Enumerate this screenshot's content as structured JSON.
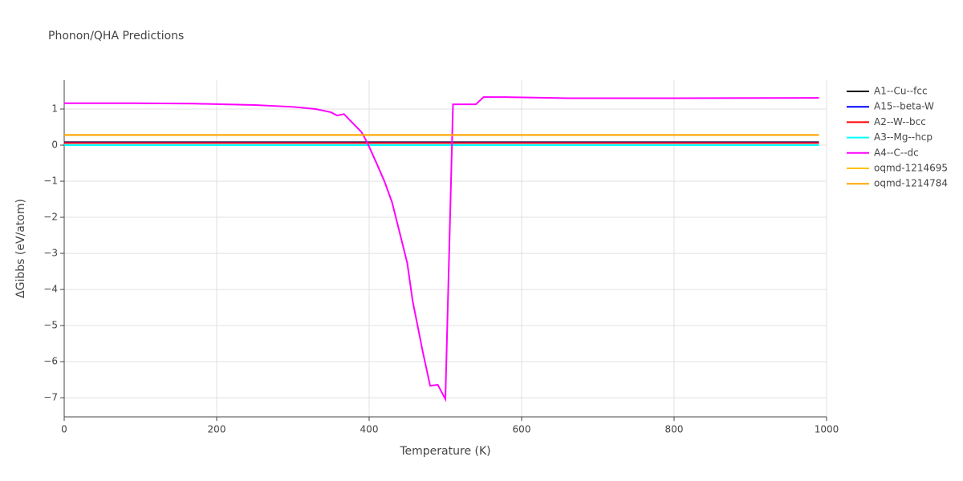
{
  "chart_data": {
    "type": "line",
    "title": "Phonon/QHA Predictions",
    "xlabel": "Temperature (K)",
    "ylabel": "ΔGibbs (eV/atom)",
    "xlim": [
      0,
      1000
    ],
    "xticks": [
      0,
      200,
      400,
      600,
      800,
      1000
    ],
    "ylim": [
      -7.53,
      1.8
    ],
    "yticks": [
      {
        "value": -7,
        "label": "−7"
      },
      {
        "value": -6,
        "label": "−6"
      },
      {
        "value": -5,
        "label": "−5"
      },
      {
        "value": -4,
        "label": "−4"
      },
      {
        "value": -3,
        "label": "−3"
      },
      {
        "value": -2,
        "label": "−2"
      },
      {
        "value": -1,
        "label": "−1"
      },
      0,
      1
    ],
    "grid": true,
    "series": [
      {
        "name": "A1--Cu--fcc",
        "color": "#000000",
        "x": [
          0,
          990
        ],
        "values": [
          0.08,
          0.08
        ]
      },
      {
        "name": "A15--beta-W",
        "color": "#0000ff",
        "x": [
          0,
          990
        ],
        "values": [
          0.07,
          0.07
        ]
      },
      {
        "name": "A2--W--bcc",
        "color": "#ff0000",
        "x": [
          0,
          990
        ],
        "values": [
          0.06,
          0.06
        ]
      },
      {
        "name": "A3--Mg--hcp",
        "color": "#00ffff",
        "x": [
          0,
          990
        ],
        "values": [
          0,
          0
        ]
      },
      {
        "name": "A4--C--dc",
        "color": "#ff00ff",
        "x": [
          0,
          90,
          170,
          250,
          300,
          330,
          350,
          358,
          367,
          390,
          398,
          408,
          420,
          430,
          440,
          450,
          457,
          470,
          480,
          490,
          500,
          510,
          540,
          550,
          580,
          610,
          660,
          800,
          990
        ],
        "values": [
          1.16,
          1.16,
          1.15,
          1.11,
          1.06,
          1.0,
          0.91,
          0.82,
          0.86,
          0.36,
          0.05,
          -0.42,
          -1.0,
          -1.58,
          -2.42,
          -3.27,
          -4.31,
          -5.69,
          -6.67,
          -6.64,
          -7.04,
          1.13,
          1.13,
          1.33,
          1.33,
          1.32,
          1.3,
          1.3,
          1.31
        ]
      },
      {
        "name": "oqmd-1214695",
        "color": "#ffc000",
        "x": [
          0,
          990
        ],
        "values": [
          0.28,
          0.28
        ]
      },
      {
        "name": "oqmd-1214784",
        "color": "#ffa500",
        "x": [
          0,
          990
        ],
        "values": [
          0.28,
          0.28
        ]
      }
    ]
  }
}
